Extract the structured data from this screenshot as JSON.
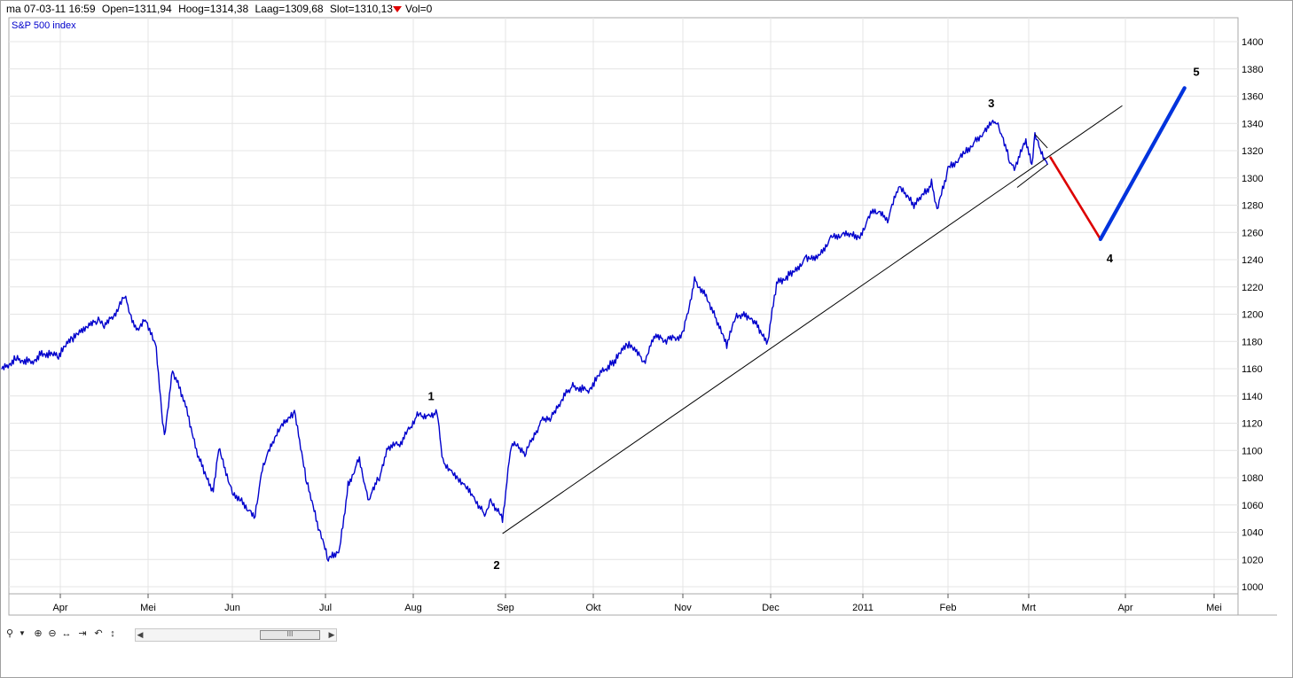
{
  "header": {
    "datetime": "ma 07-03-11 16:59",
    "open": "Open=1311,94",
    "high": "Hoog=1314,38",
    "low": "Laag=1309,68",
    "close": "Slot=1310,13",
    "volume": "Vol=0"
  },
  "toolbar": {
    "icons": [
      "magnifier-icon",
      "dropdown-arrow-icon",
      "zoom-in-icon",
      "zoom-out-icon",
      "horizontal-stretch-icon",
      "fit-right-icon",
      "reset-icon",
      "vertical-stretch-icon"
    ],
    "scroll_thumb": "III"
  },
  "colors": {
    "price": "#0000cc",
    "trendline": "#000000",
    "wave4": "#dd0000",
    "wave5": "#0033dd",
    "grid": "#e4e4e4"
  },
  "chart_data": {
    "type": "line",
    "title": "S&P 500 index",
    "ylim": [
      995,
      1410
    ],
    "y_ticks": [
      1000,
      1020,
      1040,
      1060,
      1080,
      1100,
      1120,
      1140,
      1160,
      1180,
      1200,
      1220,
      1240,
      1260,
      1280,
      1300,
      1320,
      1340,
      1360,
      1380,
      1400
    ],
    "x_labels": [
      "Apr",
      "Mei",
      "Jun",
      "Jul",
      "Aug",
      "Sep",
      "Okt",
      "Nov",
      "Dec",
      "2011",
      "Feb",
      "Mrt",
      "Apr",
      "Mei"
    ],
    "x_ticks": [
      "2010-04-01",
      "2010-05-01",
      "2010-06-01",
      "2010-07-01",
      "2010-08-01",
      "2010-09-01",
      "2010-10-01",
      "2010-11-01",
      "2010-12-01",
      "2011-01-01",
      "2011-02-01",
      "2011-03-01",
      "2011-04-01",
      "2011-05-01"
    ],
    "grid": true,
    "series": [
      {
        "values": [
          [
            "2010-03-12",
            1160
          ],
          [
            "2010-03-17",
            1168
          ],
          [
            "2010-03-22",
            1165
          ],
          [
            "2010-03-26",
            1172
          ],
          [
            "2010-03-31",
            1169
          ],
          [
            "2010-04-05",
            1182
          ],
          [
            "2010-04-09",
            1188
          ],
          [
            "2010-04-14",
            1196
          ],
          [
            "2010-04-16",
            1190
          ],
          [
            "2010-04-21",
            1205
          ],
          [
            "2010-04-23",
            1213
          ],
          [
            "2010-04-27",
            1188
          ],
          [
            "2010-04-30",
            1198
          ],
          [
            "2010-05-04",
            1176
          ],
          [
            "2010-05-06",
            1128
          ],
          [
            "2010-05-07",
            1110
          ],
          [
            "2010-05-10",
            1158
          ],
          [
            "2010-05-14",
            1138
          ],
          [
            "2010-05-20",
            1092
          ],
          [
            "2010-05-25",
            1070
          ],
          [
            "2010-05-27",
            1103
          ],
          [
            "2010-06-01",
            1069
          ],
          [
            "2010-06-04",
            1064
          ],
          [
            "2010-06-08",
            1050
          ],
          [
            "2010-06-11",
            1090
          ],
          [
            "2010-06-16",
            1115
          ],
          [
            "2010-06-21",
            1128
          ],
          [
            "2010-06-25",
            1076
          ],
          [
            "2010-06-29",
            1042
          ],
          [
            "2010-07-02",
            1020
          ],
          [
            "2010-07-06",
            1028
          ],
          [
            "2010-07-09",
            1075
          ],
          [
            "2010-07-13",
            1095
          ],
          [
            "2010-07-16",
            1064
          ],
          [
            "2010-07-20",
            1080
          ],
          [
            "2010-07-23",
            1101
          ],
          [
            "2010-07-28",
            1106
          ],
          [
            "2010-08-02",
            1125
          ],
          [
            "2010-08-09",
            1127
          ],
          [
            "2010-08-11",
            1092
          ],
          [
            "2010-08-16",
            1080
          ],
          [
            "2010-08-20",
            1071
          ],
          [
            "2010-08-25",
            1052
          ],
          [
            "2010-08-27",
            1064
          ],
          [
            "2010-08-31",
            1049
          ],
          [
            "2010-09-03",
            1105
          ],
          [
            "2010-09-08",
            1098
          ],
          [
            "2010-09-13",
            1121
          ],
          [
            "2010-09-17",
            1125
          ],
          [
            "2010-09-21",
            1141
          ],
          [
            "2010-09-24",
            1148
          ],
          [
            "2010-09-29",
            1144
          ],
          [
            "2010-10-05",
            1160
          ],
          [
            "2010-10-08",
            1165
          ],
          [
            "2010-10-13",
            1178
          ],
          [
            "2010-10-19",
            1165
          ],
          [
            "2010-10-22",
            1183
          ],
          [
            "2010-10-27",
            1181
          ],
          [
            "2010-11-01",
            1185
          ],
          [
            "2010-11-05",
            1225
          ],
          [
            "2010-11-09",
            1214
          ],
          [
            "2010-11-12",
            1199
          ],
          [
            "2010-11-16",
            1178
          ],
          [
            "2010-11-19",
            1199
          ],
          [
            "2010-11-24",
            1198
          ],
          [
            "2010-11-30",
            1180
          ],
          [
            "2010-12-03",
            1222
          ],
          [
            "2010-12-07",
            1228
          ],
          [
            "2010-12-13",
            1241
          ],
          [
            "2010-12-17",
            1243
          ],
          [
            "2010-12-22",
            1258
          ],
          [
            "2010-12-31",
            1258
          ],
          [
            "2011-01-05",
            1277
          ],
          [
            "2011-01-10",
            1269
          ],
          [
            "2011-01-14",
            1293
          ],
          [
            "2011-01-20",
            1280
          ],
          [
            "2011-01-26",
            1296
          ],
          [
            "2011-01-28",
            1276
          ],
          [
            "2011-02-01",
            1307
          ],
          [
            "2011-02-07",
            1319
          ],
          [
            "2011-02-11",
            1329
          ],
          [
            "2011-02-18",
            1343
          ],
          [
            "2011-02-22",
            1315
          ],
          [
            "2011-02-24",
            1306
          ],
          [
            "2011-02-28",
            1327
          ],
          [
            "2011-03-02",
            1308
          ],
          [
            "2011-03-03",
            1330
          ],
          [
            "2011-03-07",
            1310
          ]
        ]
      },
      {
        "name": "wave4",
        "values": [
          [
            "2011-03-08",
            1315
          ],
          [
            "2011-03-24",
            1255
          ]
        ]
      },
      {
        "name": "wave5",
        "values": [
          [
            "2011-03-24",
            1255
          ],
          [
            "2011-04-21",
            1366
          ]
        ]
      }
    ],
    "trendlines": [
      [
        [
          "2010-08-31",
          1039
        ],
        [
          "2011-03-31",
          1353
        ]
      ],
      [
        [
          "2011-02-25",
          1293
        ],
        [
          "2011-03-07",
          1310
        ]
      ],
      [
        [
          "2011-03-03",
          1332
        ],
        [
          "2011-03-07",
          1322
        ]
      ]
    ],
    "annotations": [
      {
        "text": "1",
        "x": "2010-08-07",
        "y": 1137
      },
      {
        "text": "2",
        "x": "2010-08-29",
        "y": 1013
      },
      {
        "text": "3",
        "x": "2011-02-16",
        "y": 1352
      },
      {
        "text": "4",
        "x": "2011-03-27",
        "y": 1238
      },
      {
        "text": "5",
        "x": "2011-04-25",
        "y": 1375
      }
    ]
  }
}
